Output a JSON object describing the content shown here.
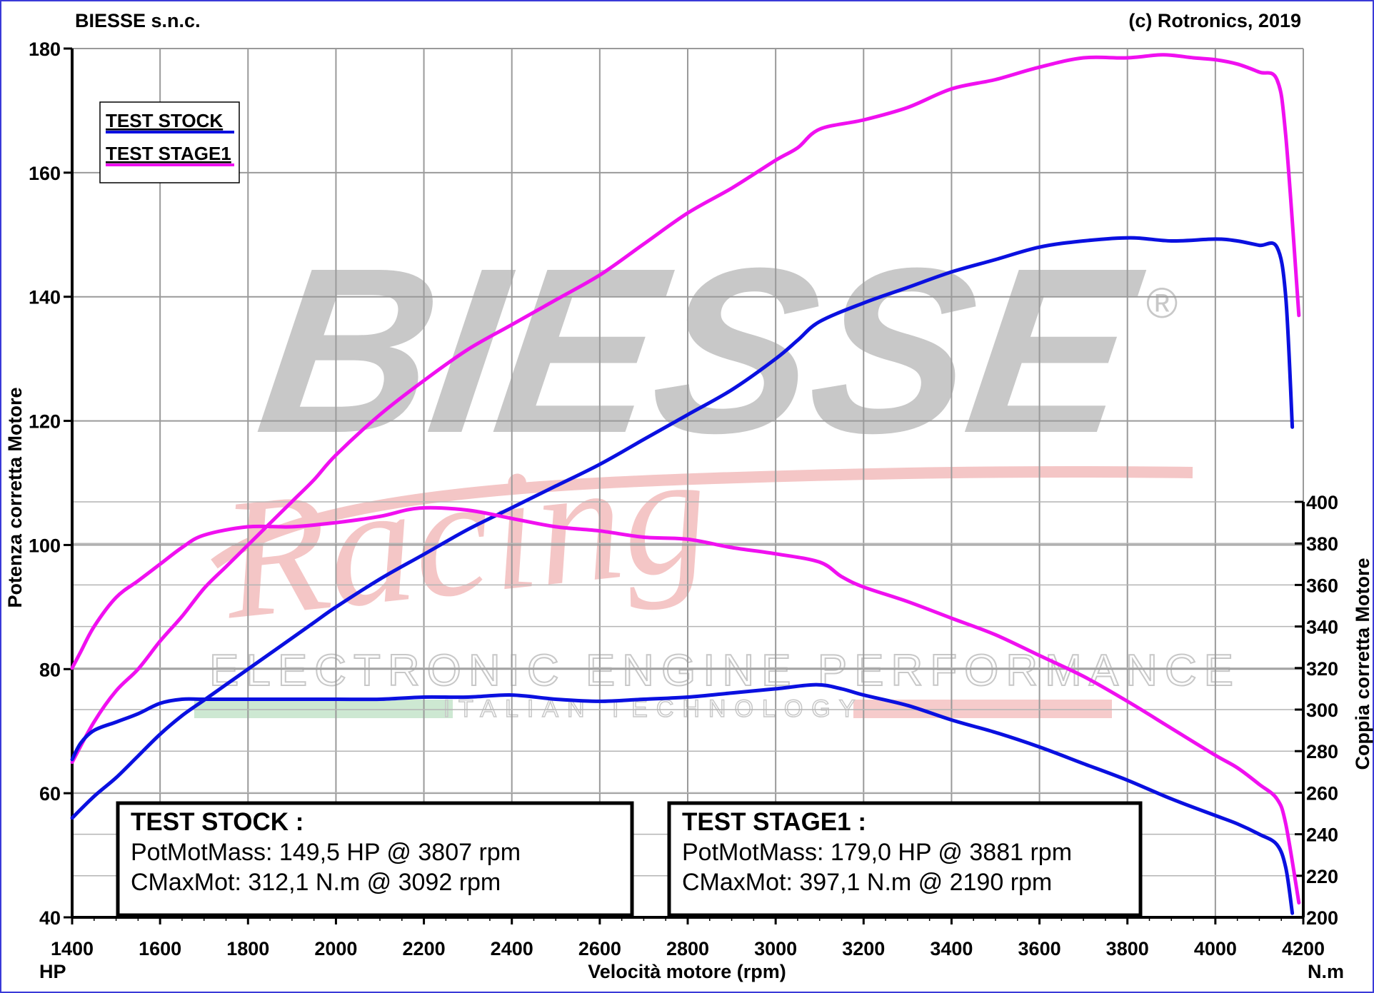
{
  "header": {
    "left": "BIESSE s.n.c.",
    "right": "(c) Rotronics, 2019"
  },
  "watermark": {
    "brand": "BIESSE",
    "registered": "®",
    "script": "Racing",
    "line1": "ELECTRONIC ENGINE PERFORMANCE",
    "line2": "ITALIAN TECHNOLOGY"
  },
  "legend": {
    "items": [
      {
        "label": "TEST STOCK",
        "color": "#0a10e0"
      },
      {
        "label": "TEST STAGE1",
        "color": "#f010f0"
      }
    ]
  },
  "boxes": {
    "stock": {
      "title": "TEST STOCK :",
      "power": "PotMotMass: 149,5 HP @ 3807 rpm",
      "torque": "CMaxMot: 312,1 N.m @ 3092 rpm"
    },
    "stage1": {
      "title": "TEST STAGE1 :",
      "power": "PotMotMass: 179,0 HP @ 3881 rpm",
      "torque": "CMaxMot: 397,1 N.m @ 2190 rpm"
    }
  },
  "chart_data": {
    "type": "line",
    "xlabel": "Velocità motore (rpm)",
    "ylabel": "Potenza corretta Motore",
    "y2label": "Coppia corretta Motore",
    "xunit": "HP",
    "y2unit": "N.m",
    "xlim": [
      1400,
      4200
    ],
    "ylim": [
      40,
      180
    ],
    "y2lim": [
      200,
      400
    ],
    "xticks": [
      1400,
      1600,
      1800,
      2000,
      2200,
      2400,
      2600,
      2800,
      3000,
      3200,
      3400,
      3600,
      3800,
      4000,
      4200
    ],
    "yticks": [
      40,
      60,
      80,
      100,
      120,
      140,
      160,
      180
    ],
    "y2ticks": [
      200,
      220,
      240,
      260,
      280,
      300,
      320,
      340,
      360,
      380,
      400
    ],
    "grid": true,
    "legend_position": "top-left",
    "series": [
      {
        "name": "TEST STOCK",
        "measure": "power",
        "axis": "left",
        "color": "#0a10e0",
        "x": [
          1400,
          1450,
          1500,
          1550,
          1600,
          1650,
          1700,
          1750,
          1800,
          1850,
          1900,
          1950,
          2000,
          2100,
          2200,
          2300,
          2400,
          2500,
          2600,
          2700,
          2800,
          2900,
          3000,
          3050,
          3100,
          3200,
          3300,
          3400,
          3500,
          3600,
          3700,
          3807,
          3900,
          4000,
          4050,
          4100,
          4140,
          4160,
          4175
        ],
        "y": [
          56,
          59.5,
          62.5,
          66,
          69.5,
          72.5,
          75,
          77.5,
          80,
          82.5,
          85,
          87.5,
          90,
          94.5,
          98.5,
          102.5,
          106,
          109.5,
          113,
          117,
          121,
          125,
          130,
          133,
          136,
          139,
          141.5,
          144,
          146,
          148,
          149,
          149.5,
          149,
          149.3,
          149,
          148.3,
          148,
          140,
          119
        ]
      },
      {
        "name": "TEST STAGE1",
        "measure": "power",
        "axis": "left",
        "color": "#f010f0",
        "x": [
          1400,
          1450,
          1500,
          1550,
          1600,
          1650,
          1700,
          1750,
          1800,
          1850,
          1900,
          1950,
          2000,
          2100,
          2200,
          2300,
          2400,
          2500,
          2600,
          2700,
          2800,
          2900,
          3000,
          3050,
          3100,
          3200,
          3300,
          3400,
          3500,
          3600,
          3700,
          3800,
          3881,
          3950,
          4000,
          4050,
          4100,
          4140,
          4160,
          4190
        ],
        "y": [
          65,
          71.5,
          76.5,
          80,
          84.5,
          88.5,
          93,
          96.5,
          100,
          103.5,
          107,
          110.5,
          114.5,
          121,
          126.5,
          131.5,
          135.5,
          139.5,
          143.5,
          148.5,
          153.5,
          157.5,
          162,
          164,
          167,
          168.5,
          170.5,
          173.5,
          175,
          177,
          178.5,
          178.5,
          179,
          178.5,
          178.2,
          177.5,
          176.2,
          175,
          166,
          137
        ]
      },
      {
        "name": "TEST STOCK",
        "measure": "torque",
        "axis": "right",
        "color": "#0a10e0",
        "x": [
          1400,
          1420,
          1450,
          1500,
          1550,
          1600,
          1650,
          1700,
          1800,
          1900,
          2000,
          2100,
          2200,
          2300,
          2400,
          2500,
          2600,
          2700,
          2800,
          2900,
          3000,
          3092,
          3150,
          3200,
          3300,
          3400,
          3500,
          3600,
          3700,
          3800,
          3900,
          4000,
          4050,
          4100,
          4140,
          4160,
          4175
        ],
        "y": [
          276,
          284,
          290,
          294,
          298,
          303,
          305,
          305,
          305,
          305,
          305,
          305,
          306,
          306,
          307,
          305,
          304,
          305,
          306,
          308,
          310,
          312,
          310,
          307,
          302,
          295,
          289,
          282,
          274,
          266,
          257,
          249,
          245,
          240,
          235,
          224,
          202
        ]
      },
      {
        "name": "TEST STAGE1",
        "measure": "torque",
        "axis": "right",
        "color": "#f010f0",
        "x": [
          1400,
          1420,
          1450,
          1500,
          1550,
          1600,
          1650,
          1700,
          1800,
          1900,
          2000,
          2100,
          2190,
          2300,
          2400,
          2500,
          2600,
          2700,
          2800,
          2900,
          3000,
          3100,
          3150,
          3200,
          3300,
          3400,
          3500,
          3600,
          3700,
          3800,
          3900,
          4000,
          4050,
          4100,
          4140,
          4160,
          4190
        ],
        "y": [
          320,
          328,
          340,
          354,
          362,
          370,
          378,
          384,
          388,
          388,
          390,
          393,
          397,
          396,
          392,
          388,
          386,
          383,
          382,
          378,
          375,
          371,
          364,
          359,
          352,
          344,
          336,
          326,
          316,
          304,
          291,
          278,
          272,
          264,
          257,
          245,
          207
        ]
      }
    ]
  }
}
